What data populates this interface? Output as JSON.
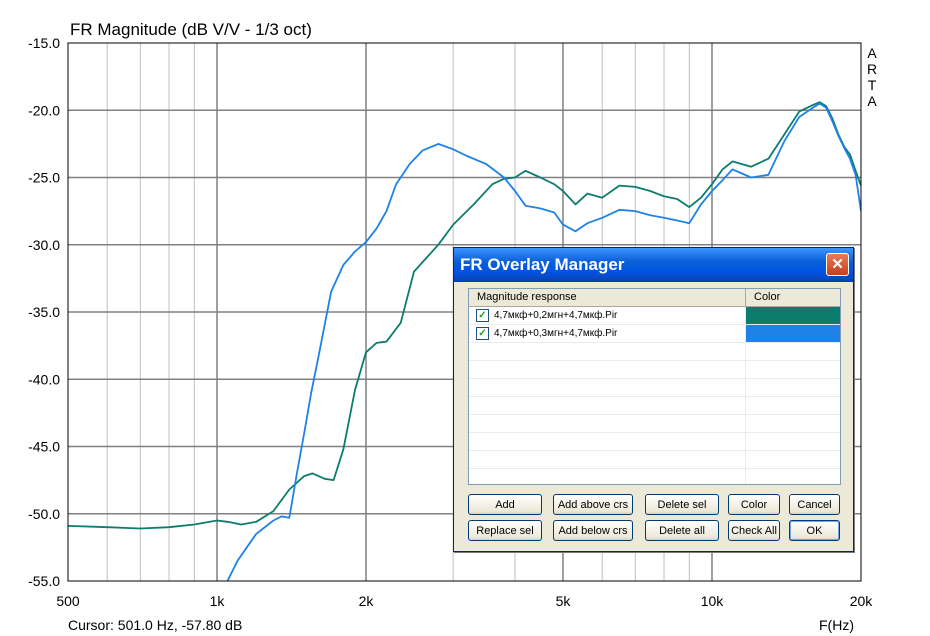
{
  "chart_data": {
    "type": "line",
    "title": "FR Magnitude (dB V/V - 1/3 oct)",
    "watermark": "ARTA",
    "xlabel": "F(Hz)",
    "xscale": "log",
    "xlim": [
      500,
      20000
    ],
    "ylim": [
      -55,
      -15
    ],
    "x_ticks": [
      500,
      1000,
      2000,
      5000,
      10000,
      20000
    ],
    "x_tick_labels": [
      "500",
      "1k",
      "2k",
      "5k",
      "10k",
      "20k"
    ],
    "y_ticks": [
      -15,
      -20,
      -25,
      -30,
      -35,
      -40,
      -45,
      -50,
      -55
    ],
    "y_tick_labels": [
      "-15.0",
      "-20.0",
      "-25.0",
      "-30.0",
      "-35.0",
      "-40.0",
      "-45.0",
      "-50.0",
      "-55.0"
    ],
    "grid": true,
    "cursor_text": "Cursor: 501.0 Hz, -57.80 dB",
    "series": [
      {
        "name": "4,7мкф+0,2мгн+4,7мкф.Pir",
        "color": "#0c7c6c",
        "x": [
          500,
          600,
          700,
          800,
          900,
          1000,
          1050,
          1120,
          1200,
          1300,
          1400,
          1500,
          1560,
          1650,
          1720,
          1800,
          1900,
          2000,
          2100,
          2200,
          2350,
          2500,
          2800,
          3000,
          3300,
          3600,
          3800,
          4000,
          4200,
          4500,
          4800,
          5000,
          5300,
          5600,
          6000,
          6500,
          7000,
          7500,
          8000,
          8500,
          9000,
          9500,
          10000,
          10500,
          11000,
          11500,
          12000,
          13000,
          14000,
          15000,
          16000,
          16500,
          17000,
          17500,
          18000,
          18500,
          19000,
          19500,
          20000
        ],
        "y": [
          -50.9,
          -51.0,
          -51.1,
          -51.0,
          -50.8,
          -50.5,
          -50.6,
          -50.8,
          -50.6,
          -49.8,
          -48.2,
          -47.2,
          -47.0,
          -47.4,
          -47.5,
          -45.2,
          -40.8,
          -38.0,
          -37.3,
          -37.2,
          -35.8,
          -32.0,
          -30.0,
          -28.5,
          -27.0,
          -25.5,
          -25.1,
          -25.0,
          -24.5,
          -25.0,
          -25.5,
          -26.0,
          -27.0,
          -26.2,
          -26.5,
          -25.6,
          -25.7,
          -26.0,
          -26.4,
          -26.6,
          -27.2,
          -26.5,
          -25.5,
          -24.4,
          -23.8,
          -24.0,
          -24.2,
          -23.6,
          -21.8,
          -20.1,
          -19.6,
          -19.4,
          -19.7,
          -20.6,
          -21.8,
          -22.7,
          -23.3,
          -24.5,
          -25.6
        ]
      },
      {
        "name": "4,7мкф+0,3мгн+4,7мкф.Pir",
        "color": "#1e82e6",
        "x": [
          1050,
          1100,
          1200,
          1300,
          1350,
          1400,
          1450,
          1500,
          1550,
          1600,
          1700,
          1800,
          1900,
          2000,
          2100,
          2200,
          2300,
          2450,
          2600,
          2800,
          3000,
          3200,
          3500,
          3800,
          4000,
          4200,
          4500,
          4800,
          5000,
          5300,
          5600,
          6000,
          6500,
          7000,
          7500,
          8000,
          8500,
          9000,
          9500,
          10000,
          10500,
          11000,
          11500,
          12000,
          13000,
          14000,
          15000,
          16000,
          16500,
          17000,
          17500,
          18000,
          18500,
          19000,
          19500,
          20000
        ],
        "y": [
          -55.0,
          -53.5,
          -51.5,
          -50.5,
          -50.2,
          -50.3,
          -47.0,
          -44.0,
          -41.0,
          -38.5,
          -33.5,
          -31.5,
          -30.5,
          -29.8,
          -28.8,
          -27.5,
          -25.5,
          -24.0,
          -23.0,
          -22.5,
          -22.9,
          -23.4,
          -24.0,
          -25.0,
          -26.0,
          -27.1,
          -27.3,
          -27.6,
          -28.5,
          -29.0,
          -28.4,
          -28.0,
          -27.4,
          -27.5,
          -27.8,
          -28.0,
          -28.2,
          -28.4,
          -27.0,
          -26.0,
          -25.2,
          -24.4,
          -24.7,
          -25.0,
          -24.8,
          -22.3,
          -20.5,
          -19.8,
          -19.5,
          -19.8,
          -20.8,
          -21.9,
          -22.8,
          -23.6,
          -24.8,
          -27.5
        ]
      }
    ]
  },
  "dialog": {
    "title": "FR Overlay Manager",
    "close_glyph": "✕",
    "columns": [
      "Magnitude response",
      "Color"
    ],
    "rows": [
      {
        "name": "4,7мкф+0,2мгн+4,7мкф.Pir",
        "checked": true,
        "color": "#0c7c6c"
      },
      {
        "name": "4,7мкф+0,3мгн+4,7мкф.Pir",
        "checked": true,
        "color": "#1e82e6"
      }
    ],
    "check_glyph": "✓",
    "buttons": {
      "add": "Add",
      "add_above": "Add above crs",
      "delete_sel": "Delete sel",
      "color": "Color",
      "cancel": "Cancel",
      "replace_sel": "Replace sel",
      "add_below": "Add below crs",
      "delete_all": "Delete all",
      "check_all": "Check All",
      "ok": "OK"
    }
  }
}
